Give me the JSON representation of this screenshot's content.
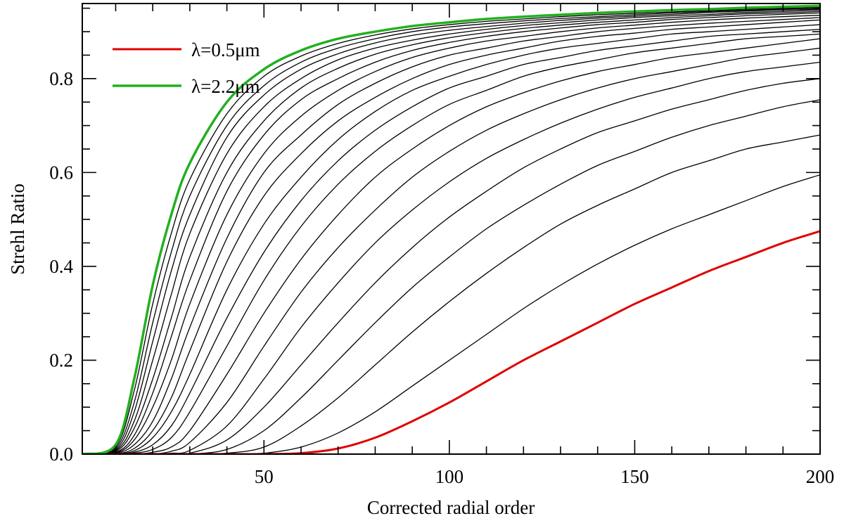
{
  "chart_data": {
    "type": "line",
    "title": "",
    "xlabel": "Corrected radial order",
    "ylabel": "Strehl Ratio",
    "xlim": [
      1,
      200
    ],
    "ylim": [
      0,
      0.96
    ],
    "x_ticks": [
      50,
      100,
      150,
      200
    ],
    "y_ticks": [
      0.0,
      0.2,
      0.4,
      0.6,
      0.8
    ],
    "x_tick_labels": [
      "50",
      "100",
      "150",
      "200"
    ],
    "y_tick_labels": [
      "0.0",
      "0.2",
      "0.4",
      "0.6",
      "0.8"
    ],
    "grid": false,
    "legend": {
      "placement": "top-left",
      "entries": [
        {
          "label": "λ=0.5μm",
          "color": "#e00000"
        },
        {
          "label": "λ=2.2μm",
          "color": "#22b020"
        }
      ]
    },
    "x": [
      1,
      10,
      15,
      20,
      25,
      30,
      40,
      50,
      60,
      70,
      80,
      90,
      100,
      110,
      120,
      130,
      140,
      150,
      160,
      170,
      180,
      190,
      200
    ],
    "series": [
      {
        "name": "λ=0.5μm",
        "color": "#e00000",
        "width": 3,
        "values": [
          0.0,
          0.0,
          0.0,
          0.0,
          0.0,
          0.0,
          0.0,
          0.0,
          0.002,
          0.012,
          0.035,
          0.07,
          0.11,
          0.155,
          0.2,
          0.24,
          0.28,
          0.32,
          0.355,
          0.39,
          0.42,
          0.45,
          0.475
        ]
      },
      {
        "color": "#000000",
        "width": 1.3,
        "values": [
          0.0,
          0.0,
          0.0,
          0.0,
          0.0,
          0.0,
          0.0,
          0.002,
          0.015,
          0.045,
          0.09,
          0.145,
          0.2,
          0.255,
          0.31,
          0.36,
          0.405,
          0.445,
          0.48,
          0.51,
          0.54,
          0.57,
          0.595
        ]
      },
      {
        "color": "#000000",
        "width": 1.3,
        "values": [
          0.0,
          0.0,
          0.0,
          0.0,
          0.0,
          0.0,
          0.002,
          0.015,
          0.06,
          0.12,
          0.19,
          0.26,
          0.325,
          0.385,
          0.44,
          0.49,
          0.53,
          0.565,
          0.6,
          0.625,
          0.65,
          0.665,
          0.68
        ]
      },
      {
        "color": "#000000",
        "width": 1.3,
        "values": [
          0.0,
          0.0,
          0.0,
          0.0,
          0.0,
          0.0,
          0.01,
          0.05,
          0.12,
          0.2,
          0.28,
          0.355,
          0.42,
          0.48,
          0.53,
          0.575,
          0.615,
          0.645,
          0.675,
          0.7,
          0.72,
          0.74,
          0.755
        ]
      },
      {
        "color": "#000000",
        "width": 1.3,
        "values": [
          0.0,
          0.0,
          0.0,
          0.0,
          0.0,
          0.002,
          0.03,
          0.1,
          0.19,
          0.28,
          0.365,
          0.44,
          0.505,
          0.56,
          0.61,
          0.65,
          0.685,
          0.71,
          0.735,
          0.755,
          0.775,
          0.79,
          0.8
        ]
      },
      {
        "color": "#000000",
        "width": 1.3,
        "values": [
          0.0,
          0.0,
          0.0,
          0.0,
          0.002,
          0.008,
          0.06,
          0.16,
          0.27,
          0.365,
          0.45,
          0.52,
          0.58,
          0.63,
          0.67,
          0.705,
          0.735,
          0.76,
          0.78,
          0.8,
          0.815,
          0.825,
          0.835
        ]
      },
      {
        "color": "#000000",
        "width": 1.3,
        "values": [
          0.0,
          0.0,
          0.0,
          0.0,
          0.006,
          0.025,
          0.11,
          0.23,
          0.345,
          0.44,
          0.52,
          0.59,
          0.645,
          0.69,
          0.725,
          0.755,
          0.78,
          0.8,
          0.815,
          0.83,
          0.845,
          0.855,
          0.865
        ]
      },
      {
        "color": "#000000",
        "width": 1.3,
        "values": [
          0.0,
          0.0,
          0.0,
          0.004,
          0.015,
          0.05,
          0.17,
          0.3,
          0.415,
          0.51,
          0.59,
          0.65,
          0.7,
          0.74,
          0.77,
          0.795,
          0.815,
          0.83,
          0.845,
          0.855,
          0.865,
          0.875,
          0.885
        ]
      },
      {
        "color": "#000000",
        "width": 1.3,
        "values": [
          0.0,
          0.0,
          0.002,
          0.01,
          0.035,
          0.09,
          0.23,
          0.37,
          0.485,
          0.575,
          0.645,
          0.7,
          0.745,
          0.775,
          0.805,
          0.825,
          0.84,
          0.855,
          0.865,
          0.875,
          0.885,
          0.89,
          0.895
        ]
      },
      {
        "color": "#000000",
        "width": 1.3,
        "values": [
          0.0,
          0.0,
          0.004,
          0.02,
          0.06,
          0.13,
          0.29,
          0.43,
          0.54,
          0.625,
          0.69,
          0.74,
          0.78,
          0.805,
          0.83,
          0.845,
          0.86,
          0.87,
          0.88,
          0.89,
          0.895,
          0.9,
          0.905
        ]
      },
      {
        "color": "#000000",
        "width": 1.3,
        "values": [
          0.0,
          0.001,
          0.007,
          0.035,
          0.09,
          0.17,
          0.35,
          0.49,
          0.59,
          0.67,
          0.73,
          0.775,
          0.805,
          0.83,
          0.85,
          0.865,
          0.875,
          0.885,
          0.895,
          0.9,
          0.905,
          0.91,
          0.915
        ]
      },
      {
        "color": "#000000",
        "width": 1.3,
        "values": [
          0.0,
          0.001,
          0.012,
          0.05,
          0.12,
          0.22,
          0.41,
          0.55,
          0.64,
          0.71,
          0.76,
          0.8,
          0.83,
          0.85,
          0.865,
          0.88,
          0.89,
          0.897,
          0.905,
          0.91,
          0.915,
          0.92,
          0.925
        ]
      },
      {
        "color": "#000000",
        "width": 1.3,
        "values": [
          0.0,
          0.002,
          0.02,
          0.07,
          0.16,
          0.27,
          0.46,
          0.6,
          0.68,
          0.745,
          0.79,
          0.825,
          0.85,
          0.865,
          0.88,
          0.89,
          0.9,
          0.907,
          0.913,
          0.918,
          0.922,
          0.926,
          0.93
        ]
      },
      {
        "color": "#000000",
        "width": 1.3,
        "values": [
          0.0,
          0.003,
          0.03,
          0.1,
          0.2,
          0.32,
          0.51,
          0.64,
          0.72,
          0.775,
          0.815,
          0.845,
          0.865,
          0.88,
          0.89,
          0.9,
          0.908,
          0.914,
          0.92,
          0.925,
          0.929,
          0.932,
          0.935
        ]
      },
      {
        "color": "#000000",
        "width": 1.3,
        "values": [
          0.0,
          0.004,
          0.04,
          0.13,
          0.25,
          0.37,
          0.56,
          0.68,
          0.755,
          0.8,
          0.835,
          0.86,
          0.877,
          0.89,
          0.9,
          0.908,
          0.915,
          0.92,
          0.926,
          0.93,
          0.934,
          0.937,
          0.94
        ]
      },
      {
        "color": "#000000",
        "width": 1.3,
        "values": [
          0.0,
          0.006,
          0.055,
          0.16,
          0.29,
          0.42,
          0.6,
          0.71,
          0.78,
          0.822,
          0.852,
          0.872,
          0.887,
          0.898,
          0.907,
          0.914,
          0.92,
          0.925,
          0.93,
          0.934,
          0.938,
          0.94,
          0.943
        ]
      },
      {
        "color": "#000000",
        "width": 1.3,
        "values": [
          0.0,
          0.008,
          0.07,
          0.2,
          0.34,
          0.47,
          0.64,
          0.74,
          0.8,
          0.84,
          0.865,
          0.882,
          0.895,
          0.905,
          0.913,
          0.919,
          0.925,
          0.93,
          0.934,
          0.937,
          0.941,
          0.943,
          0.946
        ]
      },
      {
        "color": "#000000",
        "width": 1.3,
        "values": [
          0.0,
          0.01,
          0.09,
          0.24,
          0.39,
          0.51,
          0.675,
          0.765,
          0.82,
          0.853,
          0.876,
          0.892,
          0.903,
          0.911,
          0.918,
          0.924,
          0.929,
          0.933,
          0.937,
          0.941,
          0.944,
          0.946,
          0.948
        ]
      },
      {
        "color": "#000000",
        "width": 1.3,
        "values": [
          0.0,
          0.013,
          0.11,
          0.28,
          0.43,
          0.55,
          0.7,
          0.785,
          0.835,
          0.865,
          0.885,
          0.9,
          0.91,
          0.917,
          0.923,
          0.928,
          0.932,
          0.936,
          0.94,
          0.943,
          0.946,
          0.948,
          0.95
        ]
      },
      {
        "color": "#000000",
        "width": 1.3,
        "values": [
          0.0,
          0.016,
          0.135,
          0.32,
          0.47,
          0.585,
          0.725,
          0.805,
          0.848,
          0.875,
          0.893,
          0.906,
          0.915,
          0.922,
          0.927,
          0.932,
          0.936,
          0.939,
          0.942,
          0.945,
          0.948,
          0.95,
          0.952
        ]
      },
      {
        "name": "λ=2.2μm",
        "color": "#22b020",
        "width": 3.5,
        "values": [
          0.0,
          0.02,
          0.16,
          0.36,
          0.51,
          0.62,
          0.75,
          0.82,
          0.86,
          0.885,
          0.9,
          0.912,
          0.92,
          0.927,
          0.932,
          0.936,
          0.94,
          0.943,
          0.946,
          0.948,
          0.951,
          0.953,
          0.955
        ]
      }
    ]
  }
}
